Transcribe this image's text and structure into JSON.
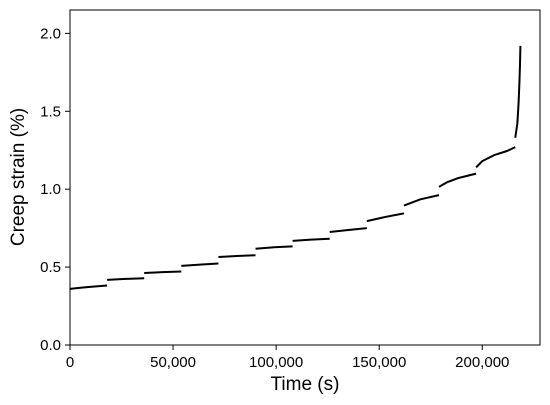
{
  "chart_data": {
    "type": "line",
    "title": "",
    "xlabel": "Time (s)",
    "ylabel": "Creep strain (%)",
    "xlim": [
      0,
      228000
    ],
    "ylim": [
      0.0,
      2.15
    ],
    "x_ticks": [
      0,
      50000,
      100000,
      150000,
      200000
    ],
    "x_tick_labels": [
      "0",
      "50,000",
      "100,000",
      "150,000",
      "200,000"
    ],
    "y_ticks": [
      0.0,
      0.5,
      1.0,
      1.5,
      2.0
    ],
    "y_tick_labels": [
      "0.0",
      "0.5",
      "1.0",
      "1.5",
      "2.0"
    ],
    "grid": false,
    "line_color": "#000000",
    "segments": [
      {
        "x": [
          0,
          4500,
          9000,
          13500,
          18000
        ],
        "y": [
          0.36,
          0.367,
          0.372,
          0.377,
          0.382
        ]
      },
      {
        "x": [
          18000,
          27000,
          36000
        ],
        "y": [
          0.418,
          0.424,
          0.428
        ]
      },
      {
        "x": [
          36000,
          45000,
          54000
        ],
        "y": [
          0.462,
          0.468,
          0.472
        ]
      },
      {
        "x": [
          54000,
          63000,
          72000
        ],
        "y": [
          0.508,
          0.516,
          0.523
        ]
      },
      {
        "x": [
          72000,
          81000,
          90000
        ],
        "y": [
          0.565,
          0.571,
          0.576
        ]
      },
      {
        "x": [
          90000,
          99000,
          108000
        ],
        "y": [
          0.618,
          0.627,
          0.633
        ]
      },
      {
        "x": [
          108000,
          117000,
          126000
        ],
        "y": [
          0.668,
          0.676,
          0.682
        ]
      },
      {
        "x": [
          126000,
          135000,
          144000
        ],
        "y": [
          0.725,
          0.738,
          0.75
        ]
      },
      {
        "x": [
          144000,
          153000,
          162000
        ],
        "y": [
          0.795,
          0.822,
          0.845
        ]
      },
      {
        "x": [
          162000,
          170000,
          179000
        ],
        "y": [
          0.895,
          0.935,
          0.962
        ]
      },
      {
        "x": [
          179000,
          183000,
          188000,
          197000
        ],
        "y": [
          1.015,
          1.045,
          1.07,
          1.1
        ]
      },
      {
        "x": [
          197000,
          200000,
          206000,
          212000,
          216000
        ],
        "y": [
          1.14,
          1.18,
          1.22,
          1.245,
          1.27
        ]
      },
      {
        "x": [
          216000,
          217000,
          217600,
          218000,
          218300,
          218500
        ],
        "y": [
          1.33,
          1.42,
          1.55,
          1.68,
          1.8,
          1.92
        ]
      }
    ]
  }
}
